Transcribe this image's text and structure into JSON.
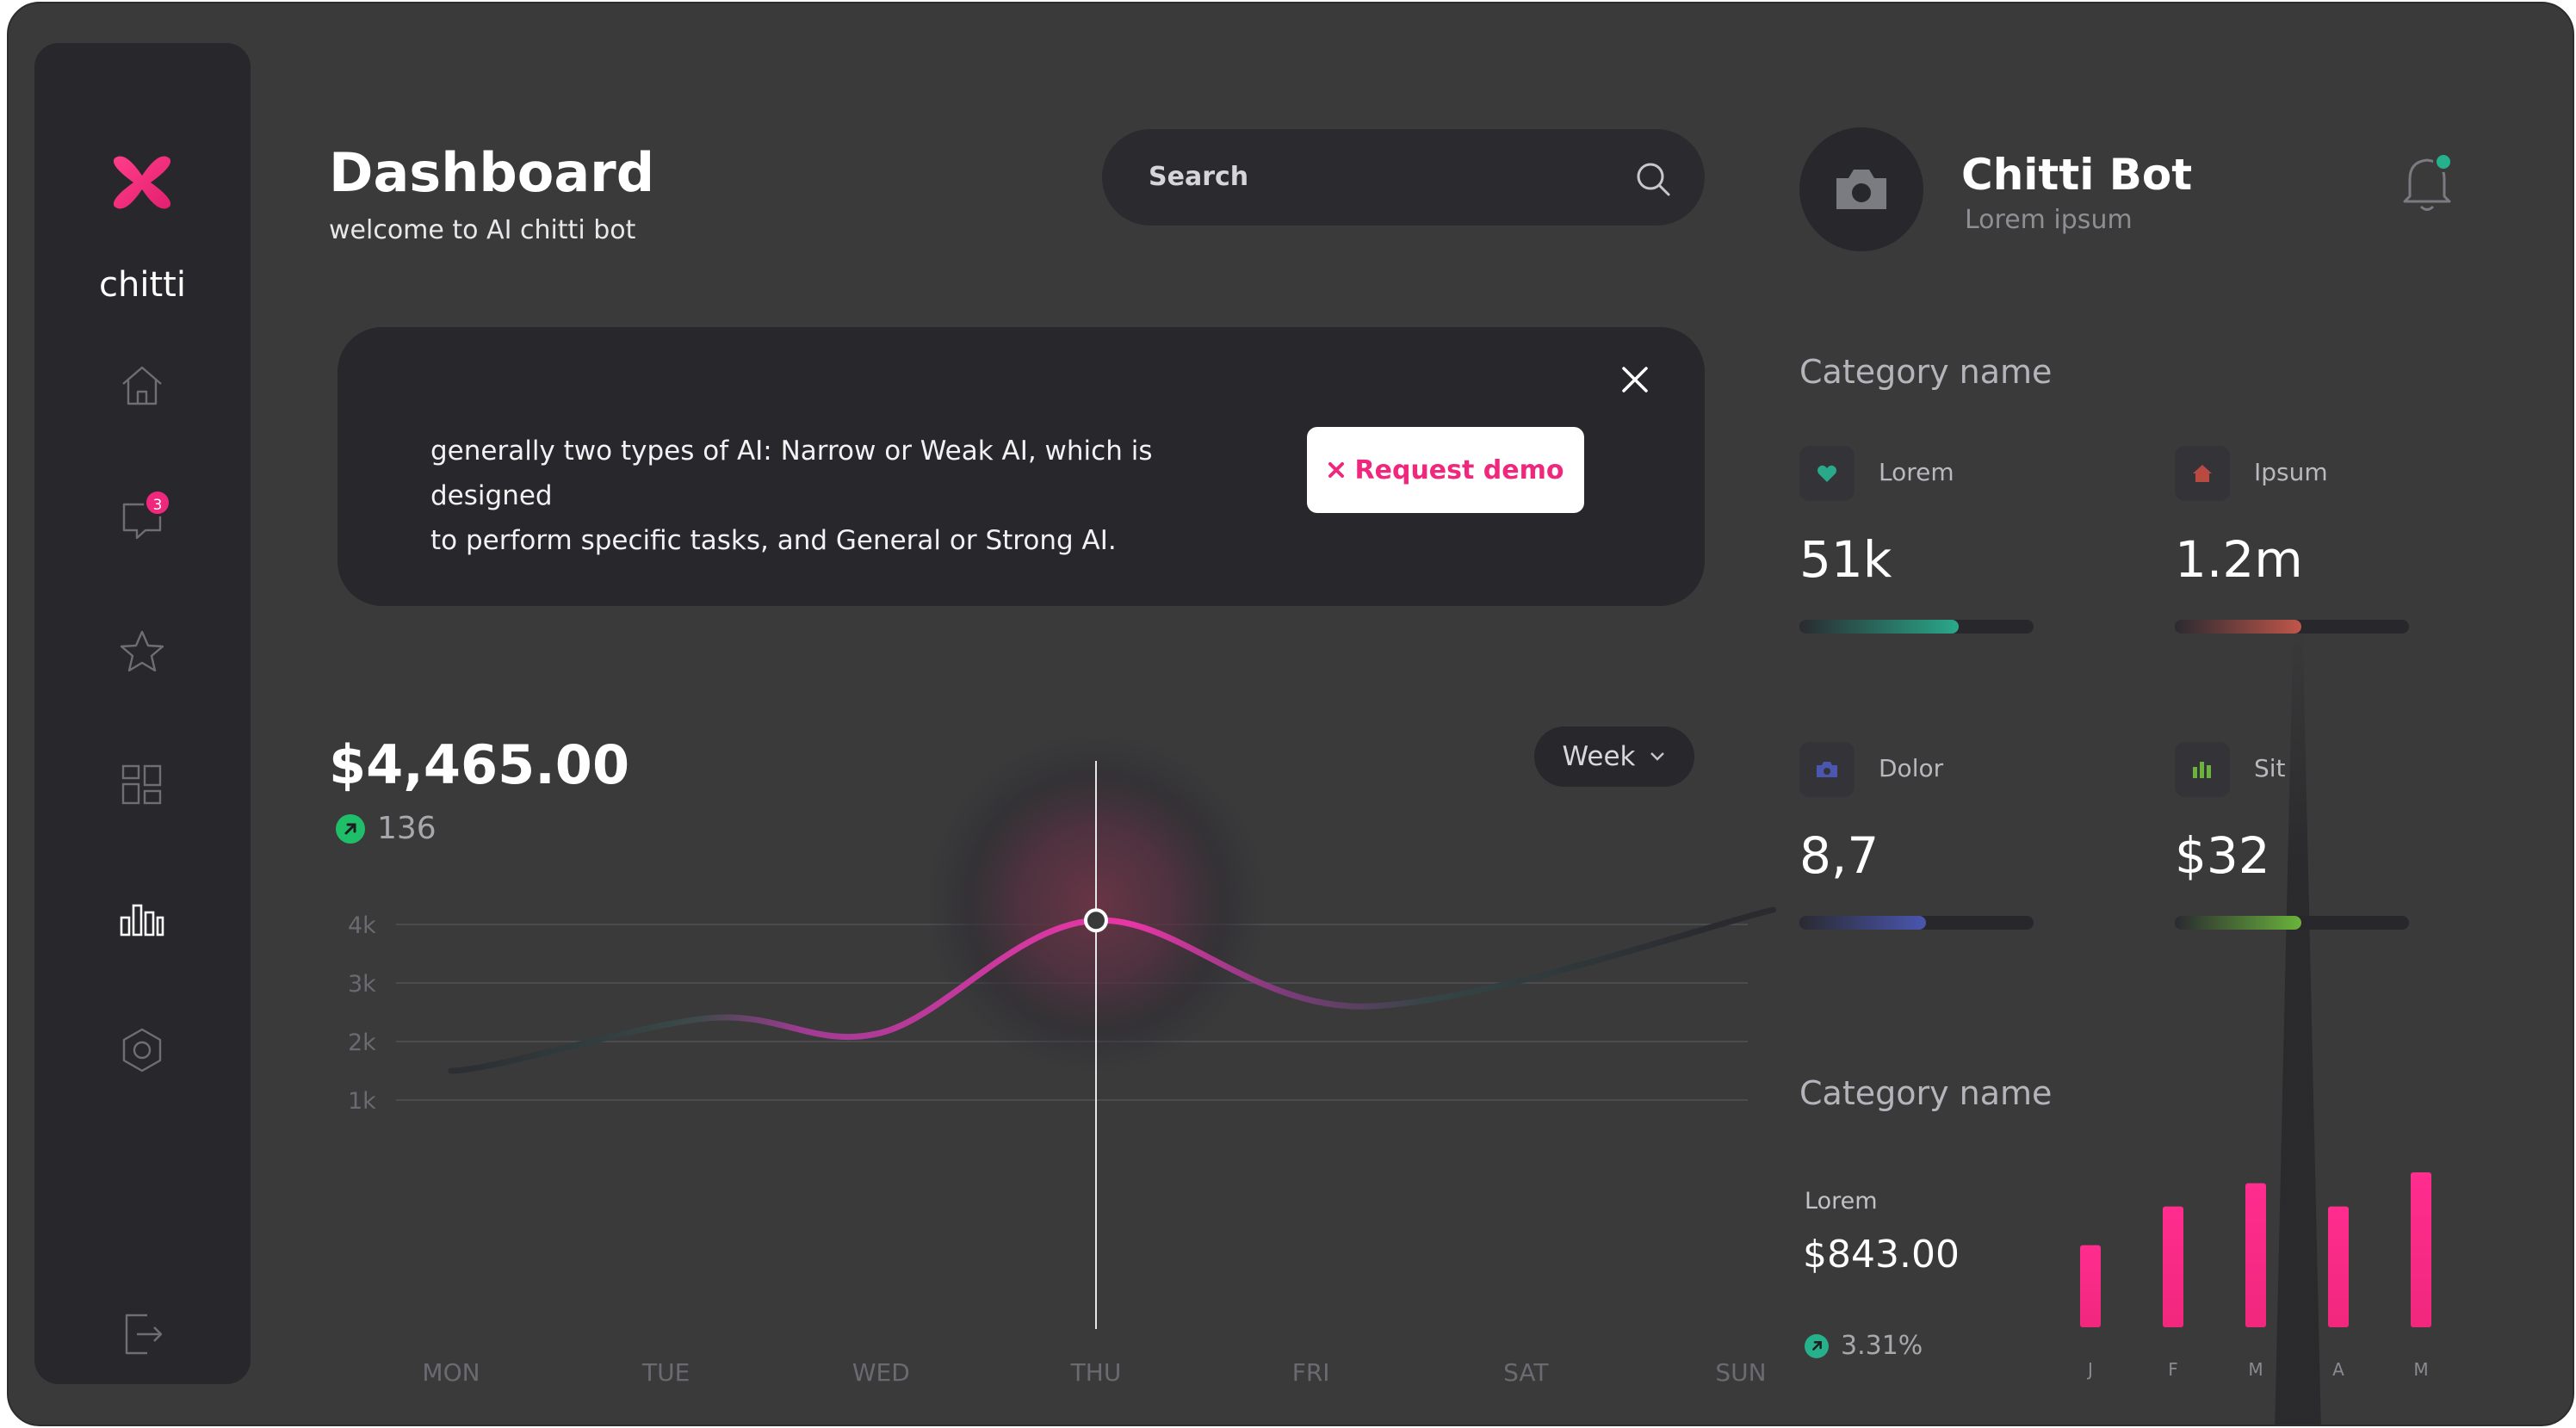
{
  "app": {
    "brand": "chitti"
  },
  "sidebar": {
    "items": [
      {
        "name": "home-icon"
      },
      {
        "name": "chat-icon",
        "badge": "3"
      },
      {
        "name": "star-icon"
      },
      {
        "name": "grid-icon"
      },
      {
        "name": "chart-icon"
      },
      {
        "name": "settings-icon"
      },
      {
        "name": "logout-icon"
      }
    ]
  },
  "header": {
    "title": "Dashboard",
    "subtitle": "welcome to AI chitti bot"
  },
  "search": {
    "placeholder": "Search"
  },
  "banner": {
    "line1": "generally two types of AI: Narrow or Weak AI, which is designed",
    "line2": "to perform specific tasks, and General or Strong AI.",
    "button_label": "Request demo",
    "button_icon": "x-icon"
  },
  "summary": {
    "amount": "$4,465.00",
    "trend": "136",
    "period": "Week"
  },
  "chart_data": {
    "type": "line",
    "categories": [
      "MON",
      "TUE",
      "WED",
      "THU",
      "FRI",
      "SAT",
      "SUN"
    ],
    "y_ticks": [
      "4k",
      "3k",
      "2k",
      "1k"
    ],
    "ylim": [
      0.5,
      4.5
    ],
    "points": [
      {
        "x": 0,
        "y": 1.5
      },
      {
        "x": 1.2,
        "y": 2.4
      },
      {
        "x": 2.0,
        "y": 2.15
      },
      {
        "x": 3.0,
        "y": 4.07
      },
      {
        "x": 4.25,
        "y": 2.6
      },
      {
        "x": 6.15,
        "y": 4.25
      }
    ],
    "highlight_category": "THU",
    "highlight_value": 4.07,
    "accent": "#e936a7"
  },
  "profile": {
    "name": "Chitti Bot",
    "subtitle": "Lorem ipsum",
    "notification": true
  },
  "category_one": {
    "title": "Category name",
    "stats": [
      {
        "label": "Lorem",
        "value": "51k",
        "icon": "heart-icon",
        "progress": 0.68,
        "color": "#29a98a"
      },
      {
        "label": "Ipsum",
        "value": "1.2m",
        "icon": "house-icon",
        "progress": 0.54,
        "color": "#c0564a"
      },
      {
        "label": "Dolor",
        "value": "8,7",
        "icon": "camera-icon",
        "progress": 0.54,
        "color": "#4a56b0"
      },
      {
        "label": "Sit",
        "value": "$32",
        "icon": "bar-chart-icon",
        "progress": 0.54,
        "color": "#6ab33c"
      }
    ]
  },
  "category_two": {
    "title": "Category name",
    "label": "Lorem",
    "amount": "$843.00",
    "trend": "3.31%",
    "bar_chart": {
      "type": "bar",
      "categories": [
        "J",
        "F",
        "M",
        "A",
        "M"
      ],
      "values": [
        0.53,
        0.78,
        0.93,
        0.78,
        1.0
      ],
      "color": "#f0287d"
    }
  }
}
